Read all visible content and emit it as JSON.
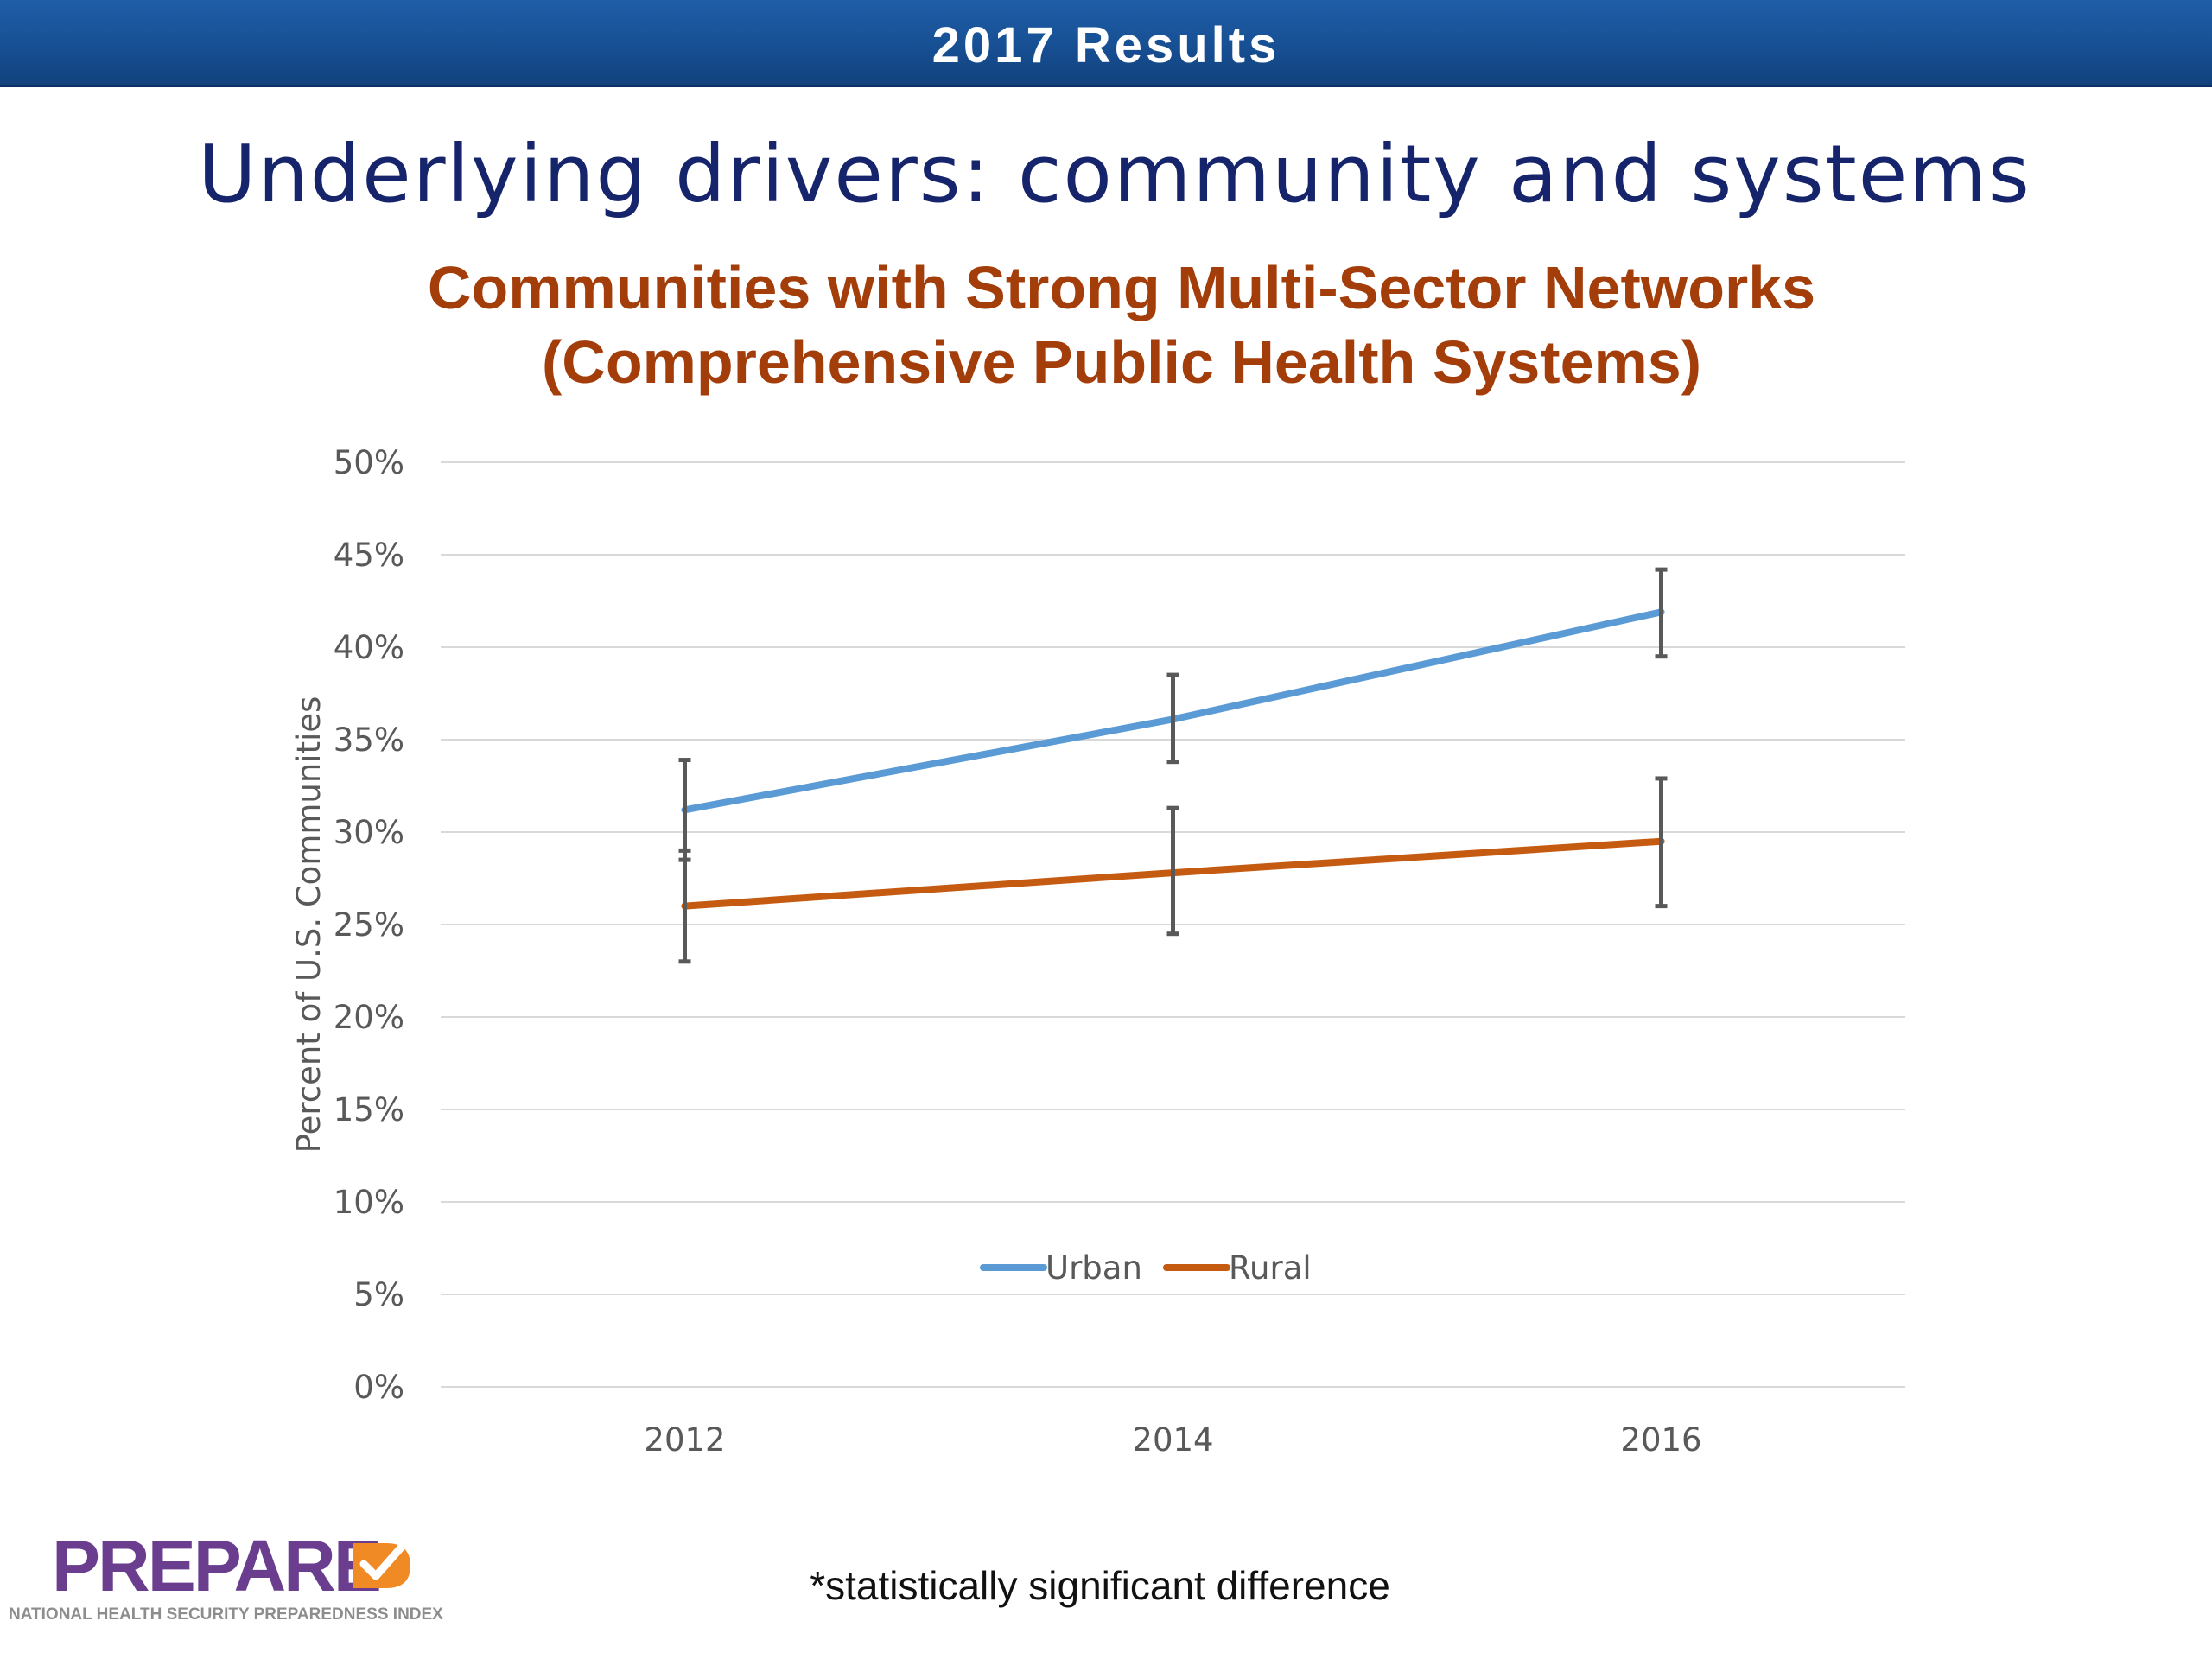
{
  "header": {
    "banner_title": "2017 Results",
    "slide_title": "Underlying drivers: community and systems"
  },
  "chart_data": {
    "type": "line",
    "title": "Communities with Strong Multi-Sector Networks",
    "subtitle": "(Comprehensive Public Health Systems)",
    "xlabel": "",
    "ylabel": "Percent of U.S. Communities",
    "categories": [
      "2012",
      "2014",
      "2016"
    ],
    "ylim": [
      0,
      50
    ],
    "y_ticks": [
      "0%",
      "5%",
      "10%",
      "15%",
      "20%",
      "25%",
      "30%",
      "35%",
      "40%",
      "45%",
      "50%"
    ],
    "y_tick_values": [
      0,
      5,
      10,
      15,
      20,
      25,
      30,
      35,
      40,
      45,
      50
    ],
    "grid": true,
    "legend_placement": "bottom-center",
    "series": [
      {
        "name": "Urban",
        "color": "#5b9bd5",
        "values": [
          31.2,
          36.1,
          41.9
        ],
        "error_low": [
          28.5,
          33.8,
          39.5
        ],
        "error_high": [
          33.9,
          38.5,
          44.2
        ]
      },
      {
        "name": "Rural",
        "color": "#c55a11",
        "values": [
          26.0,
          27.8,
          29.5
        ],
        "error_low": [
          23.0,
          24.5,
          26.0
        ],
        "error_high": [
          29.0,
          31.3,
          32.9
        ]
      }
    ]
  },
  "footer": {
    "note": "*statistically significant difference",
    "logo_text": "PREPARE",
    "logo_subtext": "NATIONAL HEALTH SECURITY PREPAREDNESS INDEX",
    "logo_check_icon": "check-icon",
    "logo_colors": {
      "purple": "#6a3d8f",
      "orange": "#f08a24"
    }
  }
}
